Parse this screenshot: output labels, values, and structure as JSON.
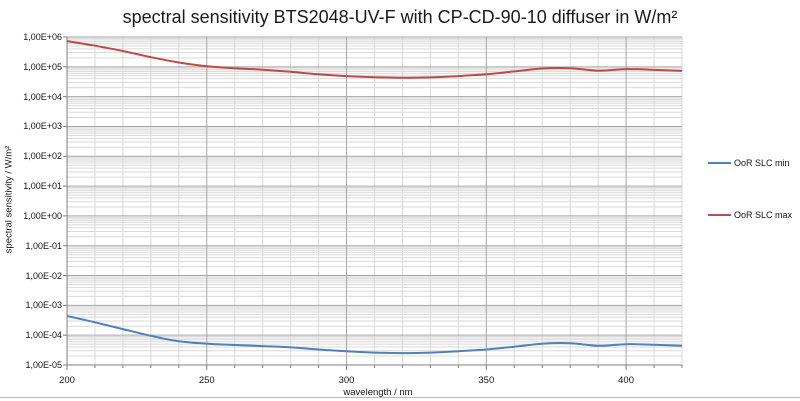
{
  "page": {
    "background": "#ffffff",
    "bottom_border_color": "#b7b7b7"
  },
  "chart_data": {
    "type": "line",
    "title": "spectral sensitivity BTS2048-UV-F with CP-CD-90-10 diffuser in W/m²",
    "xlabel": "wavelength / nm",
    "ylabel": "spectral sensitivity / W/m²",
    "x_scale": "linear",
    "y_scale": "log",
    "xlim": [
      200,
      420
    ],
    "ylim": [
      1e-05,
      1000000.0
    ],
    "x_minor_step": 10,
    "x_ticks": [
      200,
      250,
      300,
      350,
      400
    ],
    "y_ticks": [
      {
        "label": "1,00E+06",
        "value": 1000000.0
      },
      {
        "label": "1,00E+05",
        "value": 100000.0
      },
      {
        "label": "1,00E+04",
        "value": 10000.0
      },
      {
        "label": "1,00E+03",
        "value": 1000.0
      },
      {
        "label": "1,00E+02",
        "value": 100.0
      },
      {
        "label": "1,00E+01",
        "value": 10.0
      },
      {
        "label": "1,00E+00",
        "value": 1
      },
      {
        "label": "1,00E-01",
        "value": 0.1
      },
      {
        "label": "1,00E-02",
        "value": 0.01
      },
      {
        "label": "1,00E-03",
        "value": 0.001
      },
      {
        "label": "1,00E-04",
        "value": 0.0001
      },
      {
        "label": "1,00E-05",
        "value": 1e-05
      }
    ],
    "grid": {
      "major": true,
      "log_minor": true
    },
    "legend_position": "right",
    "x": [
      200,
      210,
      220,
      230,
      240,
      250,
      260,
      270,
      280,
      290,
      300,
      310,
      320,
      330,
      340,
      350,
      360,
      370,
      380,
      390,
      400,
      410,
      420
    ],
    "series": [
      {
        "name": "OoR SLC min",
        "color": "#4F81BD",
        "values": [
          0.00044,
          0.00027,
          0.00016,
          9.5e-05,
          6.3e-05,
          5.2e-05,
          4.7e-05,
          4.3e-05,
          3.9e-05,
          3.3e-05,
          2.9e-05,
          2.6e-05,
          2.5e-05,
          2.6e-05,
          2.9e-05,
          3.3e-05,
          4.1e-05,
          5.2e-05,
          5.4e-05,
          4.4e-05,
          5e-05,
          4.8e-05,
          4.4e-05
        ]
      },
      {
        "name": "OoR SLC max",
        "color": "#BE4B48",
        "values": [
          730000.0,
          510000.0,
          340000.0,
          210000.0,
          140000.0,
          105000.0,
          90000.0,
          80000.0,
          68000.0,
          56000.0,
          49000.0,
          45000.0,
          43000.0,
          44000.0,
          49000.0,
          56000.0,
          70000.0,
          88000.0,
          90000.0,
          74000.0,
          84000.0,
          79000.0,
          73000.0
        ]
      }
    ],
    "colors": {
      "grid_major": "#a6a6a6",
      "grid_minor": "#d9d9d9",
      "axis": "#808080",
      "text": "#141414"
    }
  }
}
